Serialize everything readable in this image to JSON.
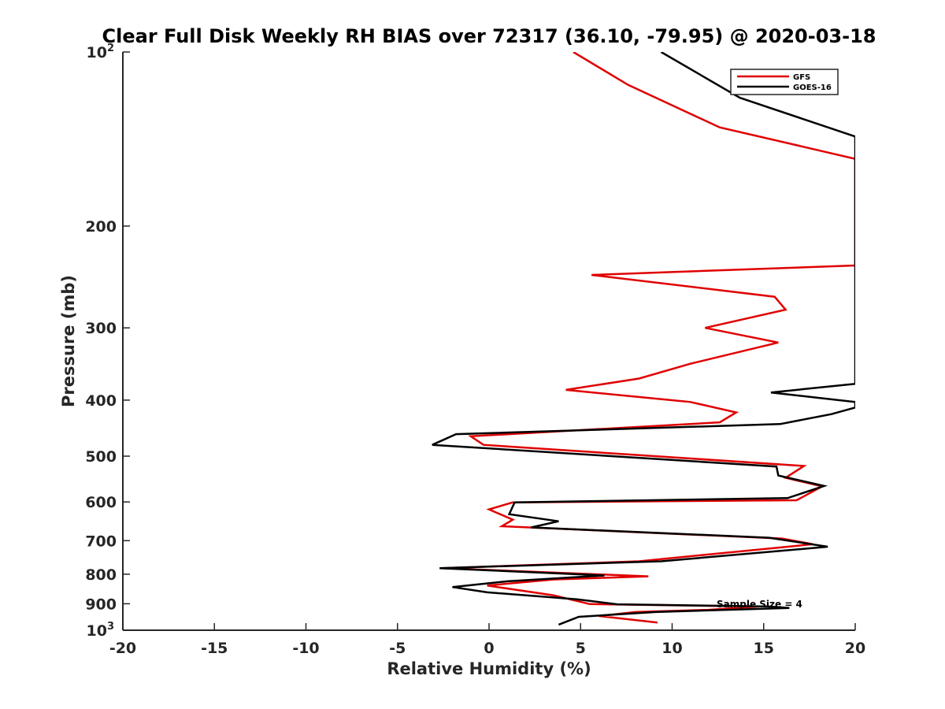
{
  "chart_data": {
    "type": "line",
    "title": "Clear Full Disk Weekly RH BIAS over 72317 (36.10, -79.95) @ 2020-03-18",
    "xlabel": "Relative Humidity (%)",
    "ylabel": "Pressure (mb)",
    "xlim": [
      -20,
      20
    ],
    "ylim": [
      100,
      1000
    ],
    "y_scale": "log",
    "y_reversed": true,
    "x_ticks": [
      "-20",
      "-15",
      "-10",
      "-5",
      "0",
      "5",
      "10",
      "15",
      "20"
    ],
    "y_ticks": [
      {
        "value": 100,
        "label": "10",
        "sup": "2"
      },
      {
        "value": 200,
        "label": "200",
        "sup": ""
      },
      {
        "value": 300,
        "label": "300",
        "sup": ""
      },
      {
        "value": 400,
        "label": "400",
        "sup": ""
      },
      {
        "value": 500,
        "label": "500",
        "sup": ""
      },
      {
        "value": 600,
        "label": "600",
        "sup": ""
      },
      {
        "value": 700,
        "label": "700",
        "sup": ""
      },
      {
        "value": 800,
        "label": "800",
        "sup": ""
      },
      {
        "value": 900,
        "label": "900",
        "sup": ""
      },
      {
        "value": 1000,
        "label": "10",
        "sup": "3"
      }
    ],
    "grid": false,
    "legend_position": "top-right",
    "annotation": "Sample Size = 4",
    "series": [
      {
        "name": "GFS",
        "color": "#e00000",
        "points": [
          [
            4.6,
            100
          ],
          [
            7.6,
            114
          ],
          [
            12.6,
            135
          ],
          [
            20.0,
            153
          ],
          [
            20.0,
            234
          ],
          [
            5.6,
            243
          ],
          [
            15.6,
            265
          ],
          [
            16.2,
            279
          ],
          [
            11.8,
            300
          ],
          [
            15.8,
            318
          ],
          [
            11.0,
            346
          ],
          [
            8.2,
            367
          ],
          [
            4.2,
            384
          ],
          [
            11.0,
            403
          ],
          [
            13.5,
            420
          ],
          [
            12.6,
            437
          ],
          [
            -1.0,
            462
          ],
          [
            -0.3,
            478
          ],
          [
            17.2,
            520
          ],
          [
            16.2,
            545
          ],
          [
            18.2,
            564
          ],
          [
            16.8,
            596
          ],
          [
            1.3,
            601
          ],
          [
            0.0,
            618
          ],
          [
            1.3,
            644
          ],
          [
            0.7,
            661
          ],
          [
            16.0,
            694
          ],
          [
            17.7,
            710
          ],
          [
            8.2,
            760
          ],
          [
            -2.5,
            781
          ],
          [
            8.7,
            807
          ],
          [
            3.5,
            817
          ],
          [
            -0.1,
            837
          ],
          [
            3.5,
            870
          ],
          [
            5.5,
            901
          ],
          [
            14.7,
            910
          ],
          [
            12.0,
            922
          ],
          [
            8.0,
            930
          ],
          [
            6.0,
            945
          ],
          [
            9.2,
            970
          ]
        ]
      },
      {
        "name": "GOES-16",
        "color": "#000000",
        "points": [
          [
            9.4,
            100
          ],
          [
            13.7,
            120
          ],
          [
            20.0,
            140
          ],
          [
            20.0,
            375
          ],
          [
            15.4,
            388
          ],
          [
            20.0,
            403
          ],
          [
            20.0,
            412
          ],
          [
            18.7,
            423
          ],
          [
            15.9,
            440
          ],
          [
            -1.8,
            458
          ],
          [
            -3.1,
            478
          ],
          [
            15.7,
            521
          ],
          [
            15.8,
            540
          ],
          [
            18.3,
            563
          ],
          [
            16.3,
            591
          ],
          [
            1.4,
            601
          ],
          [
            1.1,
            630
          ],
          [
            3.8,
            648
          ],
          [
            2.3,
            664
          ],
          [
            15.3,
            692
          ],
          [
            18.5,
            717
          ],
          [
            9.4,
            760
          ],
          [
            -2.7,
            781
          ],
          [
            6.3,
            804
          ],
          [
            1.0,
            823
          ],
          [
            -2.0,
            842
          ],
          [
            -0.1,
            860
          ],
          [
            4.8,
            884
          ],
          [
            7.0,
            902
          ],
          [
            15.3,
            910
          ],
          [
            16.4,
            915
          ],
          [
            9.1,
            930
          ],
          [
            4.9,
            948
          ],
          [
            3.8,
            978
          ]
        ]
      }
    ]
  }
}
